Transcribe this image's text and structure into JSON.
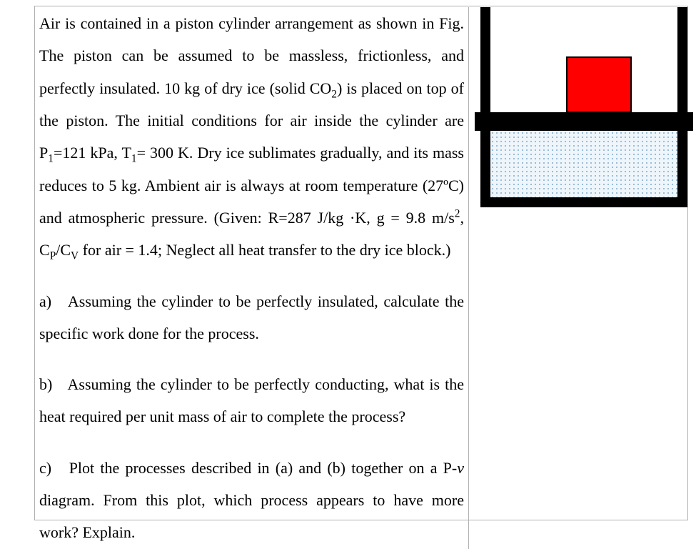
{
  "problem": {
    "intro_html": "Air is contained in a piston cylinder arrangement as shown in Fig. The piston can be assumed to be massless, frictionless, and perfectly insulated. 10 kg of dry ice (solid CO<sub>2</sub>) is placed on top of the piston. The initial conditions for air inside the cylinder are P<sub>1</sub>=121 kPa, T<sub>1</sub>= 300 K. Dry ice sublimates gradually, and its mass reduces to 5 kg. Ambient air is always at room temperature (27ºC) and atmospheric pressure. (Given:  R=287 J/kg ·K, g = 9.8 m/s<sup>2</sup>, C<sub>P</sub>/C<sub>V</sub> for air = 1.4; Neglect all heat transfer to the dry ice block.)",
    "part_a_html": "a)&nbsp;&nbsp;&nbsp;Assuming the cylinder to be perfectly insulated, calculate the specific work done for the process.",
    "part_b_html": "b)&nbsp;&nbsp;&nbsp;Assuming the cylinder to be perfectly conducting, what is the heat required per unit mass of air to complete the process?",
    "part_c_html": "c)&nbsp;&nbsp;&nbsp;Plot the processes described in (a) and (b) together on a P-<span class=\"ital\">v</span> diagram. From this plot, which process appears to have more work? Explain."
  },
  "figure": {
    "block_color": "#ff0000",
    "block_border": "#000000",
    "piston_color": "#000000",
    "cylinder_color": "#000000",
    "air_dot_color": "#7fa8c9",
    "air_bg": "#eef6fb"
  }
}
